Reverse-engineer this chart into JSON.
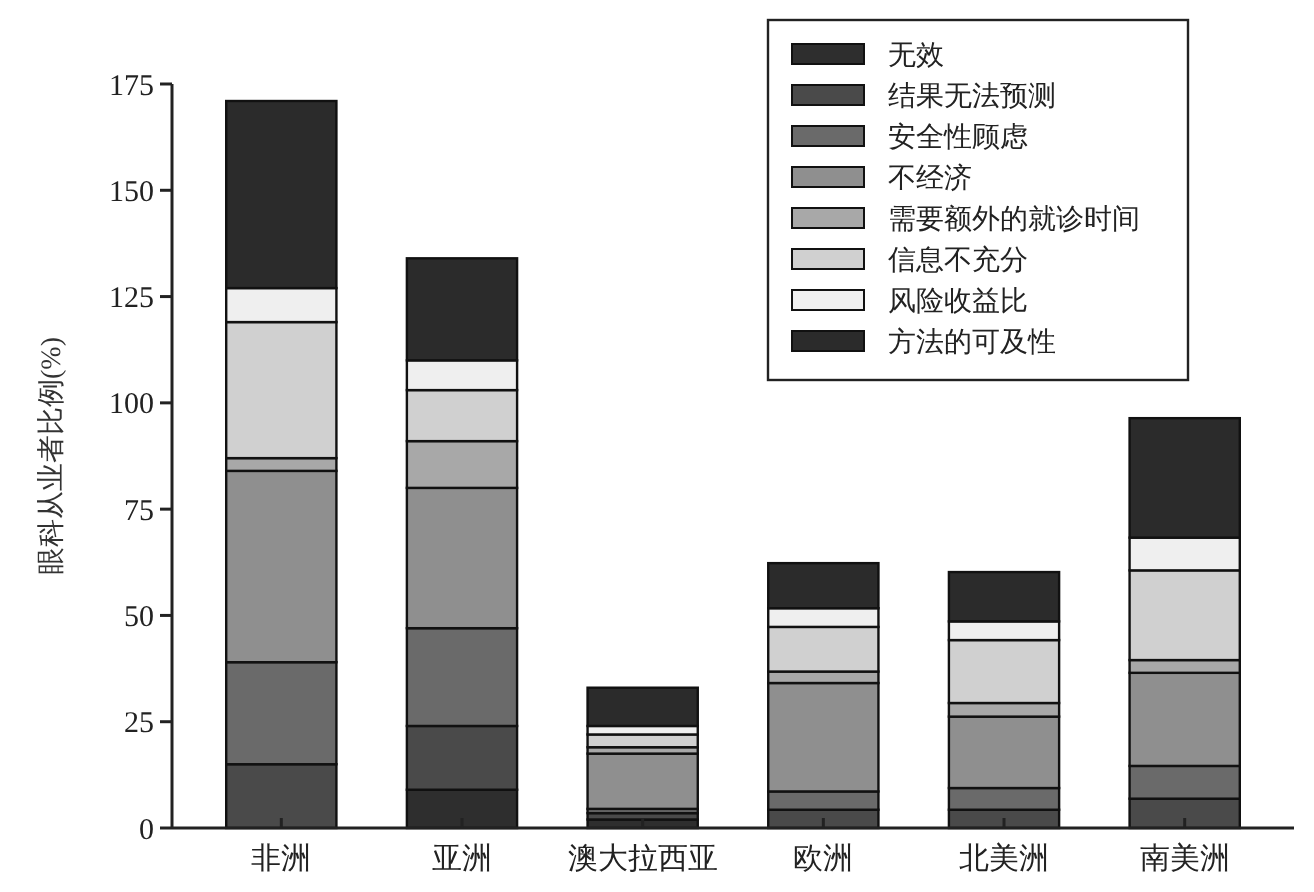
{
  "chart_data": {
    "type": "bar",
    "stacked": true,
    "ylabel": "眼科从业者比例(%)",
    "categories": [
      "非洲",
      "亚洲",
      "澳大拉西亚",
      "欧洲",
      "北美洲",
      "南美洲"
    ],
    "ylim": [
      0,
      175
    ],
    "yticks": [
      0,
      25,
      50,
      75,
      100,
      125,
      150,
      175
    ],
    "grid": false,
    "legend": "top right",
    "series": [
      {
        "name": "无效",
        "color": "#2e2e2e",
        "values": [
          0,
          9,
          2,
          0,
          0,
          0
        ]
      },
      {
        "name": "结果无法预测",
        "color": "#4a4a4a",
        "values": [
          15,
          15,
          1.5,
          4.3,
          4.3,
          6.9
        ]
      },
      {
        "name": "安全性顾虑",
        "color": "#6a6a6a",
        "values": [
          24,
          23,
          1,
          4.3,
          5.1,
          7.7
        ]
      },
      {
        "name": "不经济",
        "color": "#8f8f8f",
        "values": [
          45,
          33,
          13,
          25.5,
          16.8,
          21.9
        ]
      },
      {
        "name": "需要额外的就诊时间",
        "color": "#a8a8a8",
        "values": [
          3,
          11,
          1.5,
          2.7,
          3.2,
          3
        ]
      },
      {
        "name": "信息不充分",
        "color": "#d0d0d0",
        "values": [
          32,
          12,
          3,
          10.5,
          14.8,
          21.1
        ]
      },
      {
        "name": "风险收益比",
        "color": "#efefef",
        "values": [
          8,
          7,
          2,
          4.4,
          4.4,
          7.7
        ]
      },
      {
        "name": "方法的可及性",
        "color": "#2b2b2b",
        "values": [
          44,
          24,
          9,
          10.6,
          11.6,
          28.1
        ]
      }
    ]
  }
}
